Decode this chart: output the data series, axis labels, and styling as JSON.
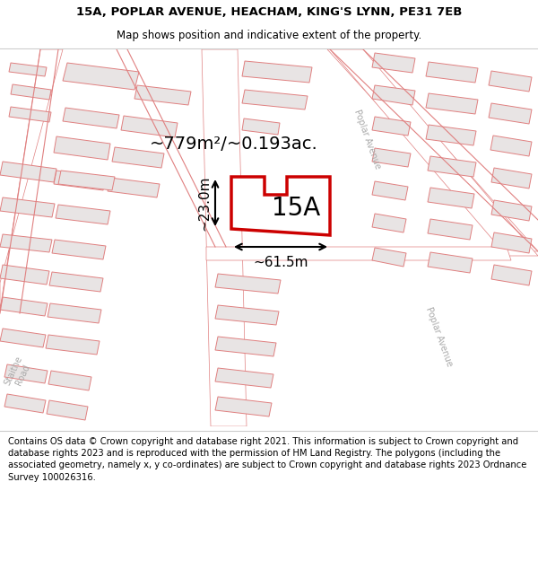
{
  "title_line1": "15A, POPLAR AVENUE, HEACHAM, KING'S LYNN, PE31 7EB",
  "title_line2": "Map shows position and indicative extent of the property.",
  "label_area": "~779m²/~0.193ac.",
  "label_width": "~61.5m",
  "label_height": "~23.0m",
  "label_plot": "15A",
  "footer_text": "Contains OS data © Crown copyright and database right 2021. This information is subject to Crown copyright and database rights 2023 and is reproduced with the permission of HM Land Registry. The polygons (including the associated geometry, namely x, y co-ordinates) are subject to Crown copyright and database rights 2023 Ordnance Survey 100026316.",
  "map_bg": "#f7f2f2",
  "road_bg": "#ffffff",
  "building_fill": "#e8e4e4",
  "building_stroke": "#e08080",
  "road_line": "#e08080",
  "plot_fill": "#ffffff",
  "plot_stroke": "#cc0000",
  "title_fontsize": 9.5,
  "subtitle_fontsize": 8.5,
  "area_fontsize": 14,
  "dim_fontsize": 11,
  "plot_label_fontsize": 20,
  "road_label_fontsize": 7,
  "footer_fontsize": 7.2
}
